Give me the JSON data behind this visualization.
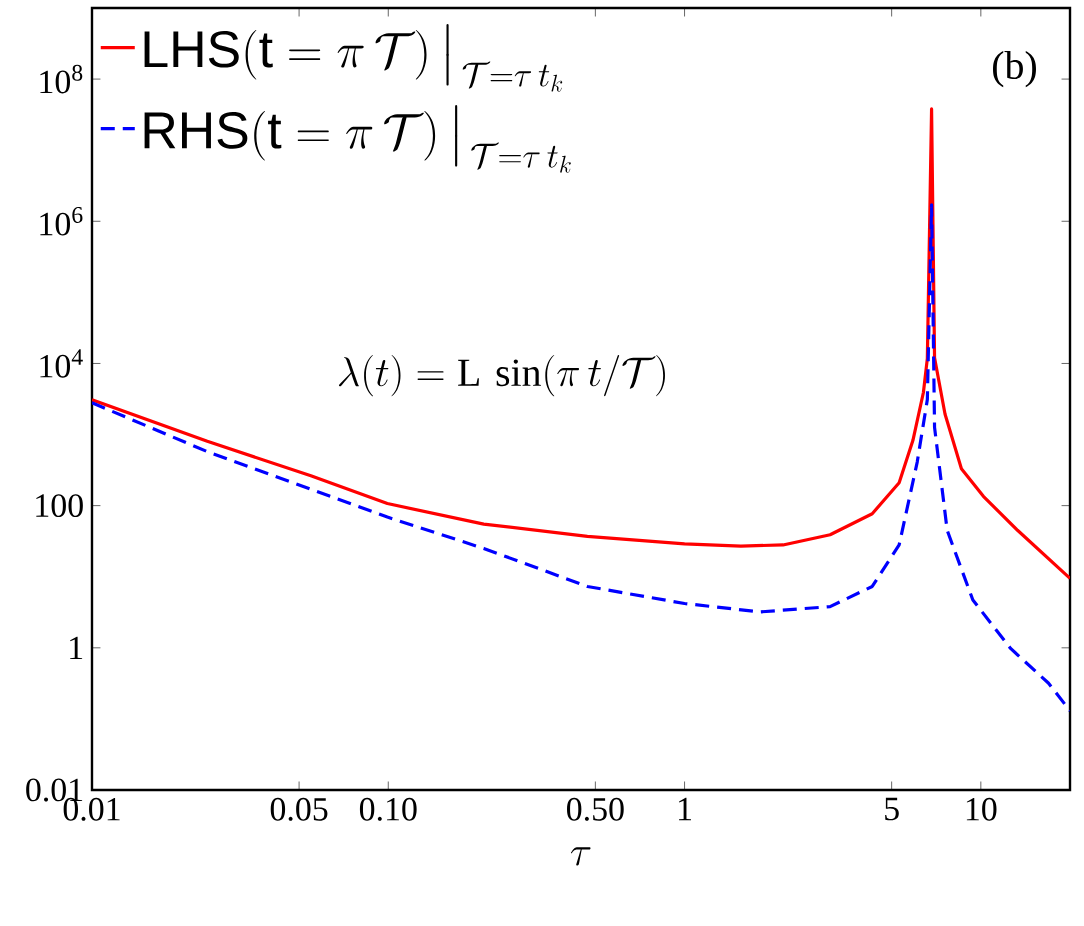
{
  "chart_data": {
    "type": "line",
    "xlabel": "\\tau",
    "annotations": [
      "(b)",
      "\\lambda(t)=\\mathrm{L}\\,\\sin(\\pi\\, t/\\mathcal{T})"
    ],
    "log": "xy",
    "grid": false,
    "legend": "top left",
    "marker": "none",
    "xlim": [
      0.01,
      20
    ],
    "ylim": [
      0.01,
      1000000000
    ],
    "xticks": [
      0.01,
      0.05,
      {
        "value": 0.1,
        "label": "0.10"
      },
      {
        "value": 0.5,
        "label": "0.50"
      },
      1,
      5,
      10
    ],
    "yticks": [
      0.01,
      1,
      100,
      {
        "value": 10000,
        "label": "10$^{4}$"
      },
      {
        "value": 1000000,
        "label": "10$^{6}$"
      },
      {
        "value": 100000000,
        "label": "10$^{8}$"
      }
    ],
    "series": [
      {
        "name": "\\mathsf{LHS}(\\mathsf{t}=\\pi\\,\\mathcal{T})\\,\\big|_{\\,\\mathcal{T}=\\tau\\, t_k}",
        "color": "#ff0000",
        "line_style": "solid",
        "x": [
          0.01,
          0.0245,
          0.0548,
          0.0993,
          0.21,
          0.47,
          1,
          1.55,
          2.15,
          3.1,
          4.3,
          5.3,
          5.9,
          6.4,
          6.6,
          6.82,
          6.98,
          7.57,
          8.6,
          10.2,
          13.3,
          20
        ],
        "values": [
          3090,
          802,
          263,
          107,
          55,
          37,
          29,
          27,
          28,
          39,
          77,
          210,
          830,
          3900,
          11800,
          38000000,
          12000,
          1950,
          330,
          135,
          45,
          9.5
        ]
      },
      {
        "name": "\\mathsf{RHS}(\\mathsf{t}=\\pi\\,\\mathcal{T})\\,\\big|_{\\,\\mathcal{T}=\\tau\\, t_k}",
        "color": "#0000ff",
        "line_style": "dashed",
        "x": [
          0.01,
          0.0245,
          0.0548,
          0.0993,
          0.21,
          0.47,
          1,
          1.8,
          3.1,
          4.3,
          5.3,
          6.1,
          6.6,
          6.82,
          6.98,
          7.7,
          9.4,
          12.6,
          16.9,
          20
        ],
        "values": [
          2800,
          575,
          170,
          69,
          25,
          7.3,
          4.2,
          3.2,
          3.8,
          7.3,
          28,
          410,
          3100,
          1700000,
          1260,
          45,
          4.7,
          0.98,
          0.32,
          0.13
        ]
      }
    ]
  }
}
